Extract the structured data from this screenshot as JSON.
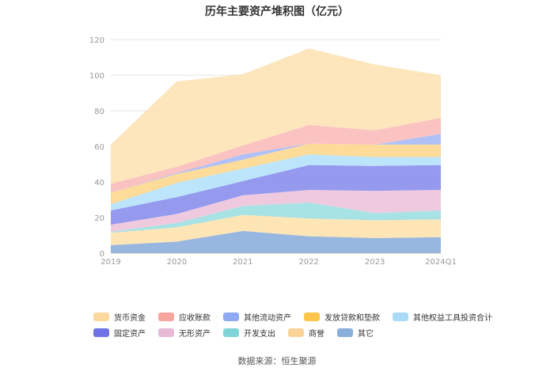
{
  "chart_data": {
    "type": "area",
    "stacked": true,
    "title": "历年主要资产堆积图（亿元）",
    "xlabel": "",
    "ylabel": "",
    "categories": [
      "2019",
      "2020",
      "2021",
      "2022",
      "2023",
      "2024Q1"
    ],
    "ylim": [
      0,
      120
    ],
    "yticks": [
      0,
      20,
      40,
      60,
      80,
      100,
      120
    ],
    "grid": true,
    "legend_position": "bottom",
    "series": [
      {
        "name": "其它",
        "color": "#8EB1DE",
        "values": [
          4.5,
          6.5,
          12.5,
          9.5,
          8.5,
          9
        ]
      },
      {
        "name": "商誉",
        "color": "#FDE3B0",
        "values": [
          7,
          8,
          9,
          10,
          10,
          10
        ]
      },
      {
        "name": "开发支出",
        "color": "#9FE0E3",
        "values": [
          0.5,
          2.5,
          5,
          9,
          4,
          5
        ]
      },
      {
        "name": "无形资产",
        "color": "#EEC5DC",
        "values": [
          4,
          5,
          6,
          7,
          12.5,
          11.5
        ]
      },
      {
        "name": "固定资产",
        "color": "#8C91EE",
        "values": [
          8,
          9.5,
          8,
          14,
          14,
          14
        ]
      },
      {
        "name": "其他权益工具投资合计",
        "color": "#B6E3FB",
        "values": [
          3.5,
          8,
          7,
          6,
          5,
          4.5
        ]
      },
      {
        "name": "发放贷款和垫款",
        "color": "#FDD88F",
        "values": [
          6.5,
          5,
          5,
          6,
          7,
          7
        ]
      },
      {
        "name": "其他流动资产",
        "color": "#A8BCF5",
        "values": [
          0,
          0.5,
          3,
          0,
          0,
          6
        ]
      },
      {
        "name": "应收账款",
        "color": "#FBBDBD",
        "values": [
          5,
          3.5,
          5,
          10.5,
          8,
          9
        ]
      },
      {
        "name": "货币资金",
        "color": "#FDE3B6",
        "values": [
          22,
          48,
          40,
          43,
          37,
          24
        ]
      }
    ],
    "legend": [
      {
        "name": "货币资金",
        "color": "#FCD89C"
      },
      {
        "name": "应收账款",
        "color": "#F8A5A0"
      },
      {
        "name": "其他流动资产",
        "color": "#8FA9F2"
      },
      {
        "name": "发放贷款和垫款",
        "color": "#FDC64A"
      },
      {
        "name": "其他权益工具投资合计",
        "color": "#A9DBF8"
      },
      {
        "name": "固定资产",
        "color": "#6F73E6"
      },
      {
        "name": "无形资产",
        "color": "#E8B9D6"
      },
      {
        "name": "开发支出",
        "color": "#7FD4D8"
      },
      {
        "name": "商誉",
        "color": "#FCD49A"
      },
      {
        "name": "其它",
        "color": "#8AAEDC"
      }
    ]
  },
  "source": "数据来源：恒生聚源"
}
